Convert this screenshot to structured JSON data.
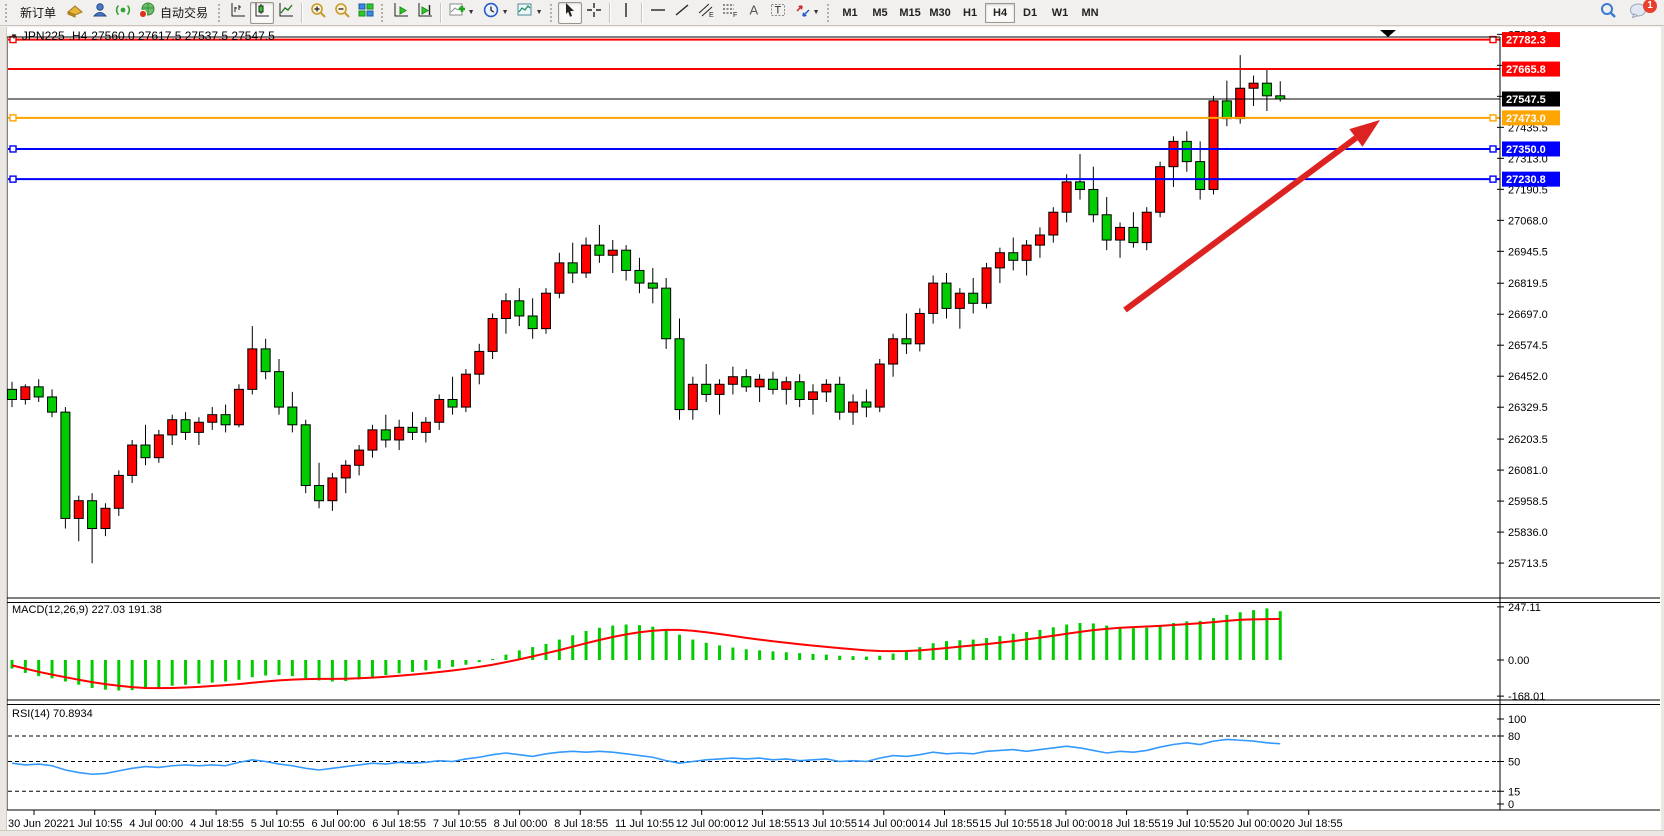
{
  "toolbar": {
    "new_order_label": "新订单",
    "auto_trading_label": "自动交易",
    "timeframes": [
      "M1",
      "M5",
      "M15",
      "M30",
      "H1",
      "H4",
      "D1",
      "W1",
      "MN"
    ],
    "active_timeframe": "H4",
    "notification_badge": "1"
  },
  "chart": {
    "title_symbol": "JPN225-.H4",
    "title_ohlc": "27560.0 27617.5 27537.5 27547.5",
    "macd_label": "MACD(12,26,9) 227.03 191.38",
    "rsi_label": "RSI(14) 70.8934"
  },
  "chart_data": {
    "type": "candlestick",
    "symbol": "JPN225-",
    "timeframe": "H4",
    "colors": {
      "bull": "#ff0000",
      "bear": "#00cc00",
      "outline": "#000000",
      "macd_hist": "#00cc00",
      "macd_signal": "#ff0000",
      "rsi_line": "#3399ff",
      "line_red": "#ff0000",
      "line_orange": "#ffa500",
      "line_blue": "#0000ff",
      "bid_line": "#000000",
      "arrow": "#dd2222"
    },
    "price_axis": {
      "ylim": [
        25575.5,
        27792.5
      ],
      "ticks": [
        "27803.0",
        "27680.5",
        "27558.0",
        "27435.5",
        "27313.0",
        "27190.5",
        "27068.0",
        "26945.5",
        "26819.5",
        "26697.0",
        "26574.5",
        "26452.0",
        "26329.5",
        "26203.5",
        "26081.0",
        "25958.5",
        "25836.0",
        "25713.5"
      ],
      "tick_values": [
        27803.0,
        27680.5,
        27558.0,
        27435.5,
        27313.0,
        27190.5,
        27068.0,
        26945.5,
        26819.5,
        26697.0,
        26574.5,
        26452.0,
        26329.5,
        26203.5,
        26081.0,
        25958.5,
        25836.0,
        25713.5
      ]
    },
    "hlines": [
      {
        "price": 27782.3,
        "label": "27782.3",
        "color": "#ff0000",
        "width": 2,
        "handles": true
      },
      {
        "price": 27665.8,
        "label": "27665.8",
        "color": "#ff0000",
        "width": 2,
        "handles": false
      },
      {
        "price": 27547.5,
        "label": "27547.5",
        "color": "#000000",
        "width": 1,
        "handles": false,
        "kind": "bid"
      },
      {
        "price": 27473.0,
        "label": "27473.0",
        "color": "#ffa500",
        "width": 2,
        "handles": true
      },
      {
        "price": 27350.0,
        "label": "27350.0",
        "color": "#0000ff",
        "width": 2,
        "handles": true
      },
      {
        "price": 27230.8,
        "label": "27230.8",
        "color": "#0000ff",
        "width": 2,
        "handles": true
      }
    ],
    "x_labels": [
      "30 Jun 2022",
      "1 Jul 10:55",
      "4 Jul 00:00",
      "4 Jul 18:55",
      "5 Jul 10:55",
      "6 Jul 00:00",
      "6 Jul 18:55",
      "7 Jul 10:55",
      "8 Jul 00:00",
      "8 Jul 18:55",
      "11 Jul 10:55",
      "12 Jul 00:00",
      "12 Jul 18:55",
      "13 Jul 10:55",
      "14 Jul 00:00",
      "14 Jul 18:55",
      "15 Jul 10:55",
      "18 Jul 00:00",
      "18 Jul 18:55",
      "19 Jul 10:55",
      "20 Jul 00:00",
      "20 Jul 18:55"
    ],
    "candles": [
      [
        26400,
        26430,
        26330,
        26360
      ],
      [
        26360,
        26420,
        26340,
        26410
      ],
      [
        26410,
        26440,
        26350,
        26370
      ],
      [
        26370,
        26400,
        26290,
        26310
      ],
      [
        26310,
        26330,
        25850,
        25890
      ],
      [
        25890,
        25980,
        25800,
        25960
      ],
      [
        25960,
        25990,
        25713,
        25850
      ],
      [
        25850,
        25950,
        25820,
        25930
      ],
      [
        25930,
        26080,
        25900,
        26060
      ],
      [
        26060,
        26200,
        26030,
        26180
      ],
      [
        26180,
        26260,
        26100,
        26130
      ],
      [
        26130,
        26240,
        26110,
        26220
      ],
      [
        26220,
        26300,
        26180,
        26280
      ],
      [
        26280,
        26310,
        26200,
        26230
      ],
      [
        26230,
        26290,
        26180,
        26270
      ],
      [
        26270,
        26330,
        26240,
        26300
      ],
      [
        26300,
        26340,
        26230,
        26260
      ],
      [
        26260,
        26420,
        26250,
        26400
      ],
      [
        26400,
        26650,
        26380,
        26560
      ],
      [
        26560,
        26600,
        26440,
        26470
      ],
      [
        26470,
        26520,
        26300,
        26330
      ],
      [
        26330,
        26390,
        26230,
        26260
      ],
      [
        26260,
        26280,
        25990,
        26020
      ],
      [
        26020,
        26110,
        25930,
        25960
      ],
      [
        25960,
        26070,
        25920,
        26050
      ],
      [
        26050,
        26120,
        25990,
        26100
      ],
      [
        26100,
        26180,
        26060,
        26160
      ],
      [
        26160,
        26260,
        26130,
        26240
      ],
      [
        26240,
        26300,
        26170,
        26200
      ],
      [
        26200,
        26280,
        26160,
        26250
      ],
      [
        26250,
        26310,
        26200,
        26230
      ],
      [
        26230,
        26290,
        26190,
        26270
      ],
      [
        26270,
        26380,
        26240,
        26360
      ],
      [
        26360,
        26450,
        26300,
        26330
      ],
      [
        26330,
        26480,
        26310,
        26460
      ],
      [
        26460,
        26580,
        26420,
        26550
      ],
      [
        26550,
        26700,
        26520,
        26680
      ],
      [
        26680,
        26780,
        26620,
        26750
      ],
      [
        26750,
        26800,
        26650,
        26690
      ],
      [
        26690,
        26760,
        26600,
        26640
      ],
      [
        26640,
        26800,
        26620,
        26780
      ],
      [
        26780,
        26940,
        26760,
        26900
      ],
      [
        26900,
        26980,
        26820,
        26860
      ],
      [
        26860,
        27000,
        26840,
        26970
      ],
      [
        26970,
        27050,
        26900,
        26930
      ],
      [
        26930,
        26990,
        26860,
        26950
      ],
      [
        26950,
        26970,
        26830,
        26870
      ],
      [
        26870,
        26920,
        26780,
        26820
      ],
      [
        26820,
        26880,
        26740,
        26800
      ],
      [
        26800,
        26840,
        26560,
        26600
      ],
      [
        26600,
        26680,
        26280,
        26320
      ],
      [
        26320,
        26450,
        26280,
        26420
      ],
      [
        26420,
        26500,
        26350,
        26380
      ],
      [
        26380,
        26440,
        26300,
        26420
      ],
      [
        26420,
        26490,
        26380,
        26450
      ],
      [
        26450,
        26480,
        26390,
        26410
      ],
      [
        26410,
        26460,
        26350,
        26440
      ],
      [
        26440,
        26470,
        26380,
        26400
      ],
      [
        26400,
        26450,
        26340,
        26430
      ],
      [
        26430,
        26460,
        26330,
        26360
      ],
      [
        26360,
        26420,
        26300,
        26390
      ],
      [
        26390,
        26440,
        26350,
        26420
      ],
      [
        26420,
        26450,
        26280,
        26310
      ],
      [
        26310,
        26380,
        26260,
        26350
      ],
      [
        26350,
        26400,
        26290,
        26330
      ],
      [
        26330,
        26520,
        26310,
        26500
      ],
      [
        26500,
        26620,
        26450,
        26600
      ],
      [
        26600,
        26700,
        26540,
        26580
      ],
      [
        26580,
        26720,
        26550,
        26700
      ],
      [
        26700,
        26850,
        26660,
        26820
      ],
      [
        26820,
        26860,
        26680,
        26720
      ],
      [
        26720,
        26800,
        26640,
        26780
      ],
      [
        26780,
        26840,
        26700,
        26740
      ],
      [
        26740,
        26900,
        26720,
        26880
      ],
      [
        26880,
        26960,
        26820,
        26940
      ],
      [
        26940,
        27000,
        26870,
        26910
      ],
      [
        26910,
        26990,
        26850,
        26970
      ],
      [
        26970,
        27040,
        26920,
        27010
      ],
      [
        27010,
        27120,
        26980,
        27100
      ],
      [
        27100,
        27250,
        27060,
        27220
      ],
      [
        27220,
        27330,
        27150,
        27190
      ],
      [
        27190,
        27280,
        27060,
        27090
      ],
      [
        27090,
        27160,
        26950,
        26990
      ],
      [
        26990,
        27060,
        26920,
        27040
      ],
      [
        27040,
        27100,
        26960,
        26980
      ],
      [
        26980,
        27120,
        26950,
        27100
      ],
      [
        27100,
        27300,
        27080,
        27280
      ],
      [
        27280,
        27400,
        27200,
        27380
      ],
      [
        27380,
        27420,
        27260,
        27300
      ],
      [
        27300,
        27380,
        27150,
        27190
      ],
      [
        27190,
        27560,
        27170,
        27540
      ],
      [
        27540,
        27620,
        27440,
        27470
      ],
      [
        27470,
        27721,
        27450,
        27590
      ],
      [
        27590,
        27640,
        27520,
        27610
      ],
      [
        27610,
        27665,
        27500,
        27560
      ],
      [
        27560,
        27617.5,
        27537.5,
        27547.5
      ]
    ],
    "macd": {
      "params": "12,26,9",
      "value_main": 227.03,
      "value_signal": 191.38,
      "axis": [
        "247.11",
        "0.00",
        "-168.01"
      ],
      "axis_values": [
        247.11,
        0.0,
        -168.01
      ],
      "hist": [
        -40,
        -60,
        -75,
        -85,
        -100,
        -115,
        -130,
        -138,
        -142,
        -140,
        -135,
        -128,
        -120,
        -115,
        -110,
        -105,
        -100,
        -92,
        -80,
        -72,
        -70,
        -75,
        -85,
        -95,
        -100,
        -98,
        -90,
        -80,
        -70,
        -62,
        -55,
        -48,
        -40,
        -32,
        -22,
        -10,
        5,
        25,
        45,
        60,
        75,
        95,
        115,
        135,
        150,
        160,
        165,
        162,
        155,
        140,
        118,
        95,
        80,
        68,
        58,
        50,
        45,
        40,
        36,
        32,
        28,
        25,
        20,
        18,
        16,
        20,
        30,
        45,
        60,
        78,
        88,
        92,
        95,
        102,
        112,
        122,
        130,
        140,
        152,
        165,
        172,
        170,
        160,
        152,
        148,
        150,
        160,
        172,
        180,
        182,
        195,
        210,
        222,
        232,
        240,
        227.03
      ],
      "signal": [
        -25,
        -40,
        -55,
        -68,
        -80,
        -92,
        -103,
        -112,
        -120,
        -126,
        -130,
        -131,
        -130,
        -128,
        -125,
        -121,
        -117,
        -112,
        -106,
        -100,
        -95,
        -91,
        -89,
        -88,
        -88,
        -87,
        -85,
        -82,
        -78,
        -73,
        -68,
        -62,
        -56,
        -49,
        -41,
        -32,
        -22,
        -10,
        3,
        17,
        31,
        46,
        62,
        78,
        93,
        107,
        119,
        129,
        136,
        140,
        140,
        136,
        129,
        121,
        112,
        103,
        95,
        87,
        80,
        73,
        67,
        61,
        55,
        50,
        45,
        42,
        41,
        42,
        45,
        50,
        56,
        62,
        68,
        74,
        81,
        88,
        96,
        104,
        113,
        122,
        131,
        139,
        145,
        150,
        153,
        156,
        159,
        163,
        167,
        171,
        176,
        182,
        187,
        189,
        190,
        191.38
      ]
    },
    "rsi": {
      "period": 14,
      "value": 70.8934,
      "axis": [
        "100",
        "80",
        "50",
        "15",
        "0"
      ],
      "axis_values": [
        100,
        80,
        50,
        15,
        0
      ],
      "levels": [
        80,
        50,
        15
      ],
      "values": [
        48,
        46,
        47,
        45,
        40,
        37,
        35,
        36,
        39,
        42,
        44,
        43,
        45,
        46,
        45,
        46,
        45,
        49,
        52,
        50,
        47,
        45,
        42,
        40,
        42,
        44,
        46,
        48,
        47,
        49,
        48,
        49,
        51,
        50,
        53,
        55,
        58,
        60,
        58,
        56,
        59,
        61,
        62,
        61,
        62,
        61,
        59,
        57,
        55,
        51,
        48,
        50,
        52,
        53,
        54,
        53,
        54,
        52,
        53,
        51,
        52,
        53,
        50,
        51,
        50,
        54,
        57,
        56,
        58,
        61,
        59,
        60,
        59,
        62,
        63,
        64,
        62,
        64,
        66,
        68,
        66,
        63,
        60,
        62,
        61,
        63,
        67,
        70,
        72,
        70,
        74,
        76,
        75,
        74,
        72,
        70.89
      ]
    },
    "trend_arrow": {
      "from": [
        1125,
        310
      ],
      "to": [
        1380,
        120
      ]
    },
    "shift_marker_x": 1388
  }
}
